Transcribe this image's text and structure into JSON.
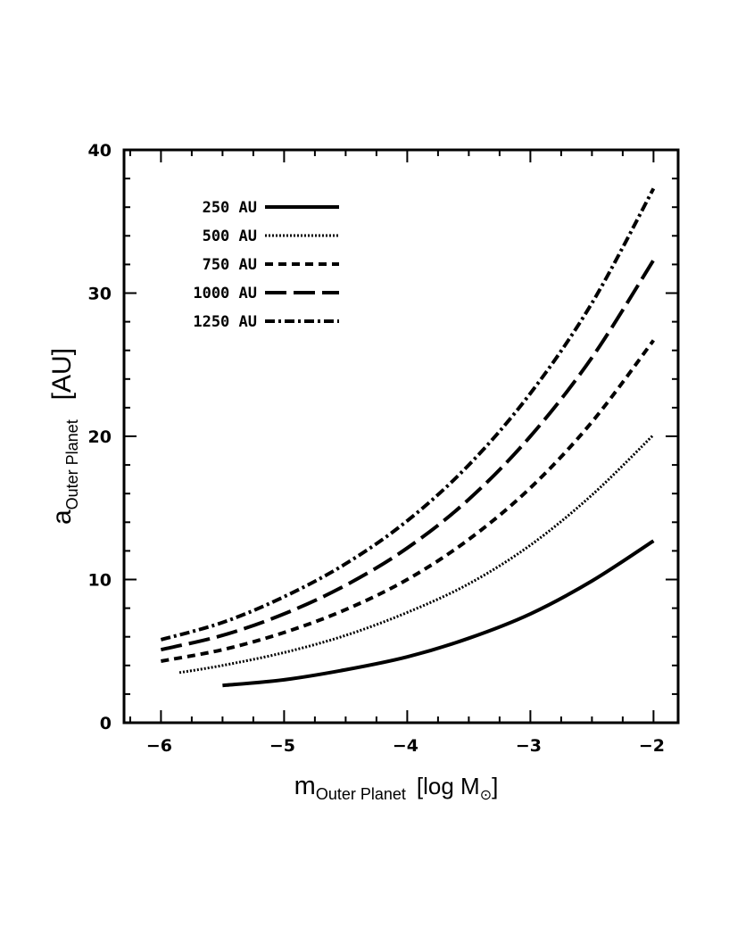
{
  "chart_data": {
    "type": "line",
    "title": "",
    "xlabel": {
      "main": "m",
      "sub": "Outer Planet",
      "unit_prefix": "[log M",
      "unit_sub": "⊙",
      "unit_suffix": "]"
    },
    "ylabel": {
      "main": "a",
      "sub": "Outer Planet",
      "unit": "[AU]"
    },
    "xlim": [
      -6.3,
      -1.8
    ],
    "ylim": [
      0,
      40
    ],
    "xticks": [
      -6,
      -5,
      -4,
      -3,
      -2
    ],
    "xtick_labels": [
      "−6",
      "−5",
      "−4",
      "−3",
      "−2"
    ],
    "yticks": [
      0,
      10,
      20,
      30,
      40
    ],
    "ytick_labels": [
      "0",
      "10",
      "20",
      "30",
      "40"
    ],
    "legend_position": "top-left",
    "series": [
      {
        "name": "250 AU",
        "style": "solid",
        "x": [
          -5.5,
          -5.0,
          -4.5,
          -4.0,
          -3.5,
          -3.0,
          -2.5,
          -2.0
        ],
        "y": [
          2.6,
          3.0,
          3.7,
          4.6,
          5.9,
          7.6,
          9.9,
          12.7
        ]
      },
      {
        "name": "500 AU",
        "style": "dotted",
        "x": [
          -5.85,
          -5.5,
          -5.0,
          -4.5,
          -4.0,
          -3.5,
          -3.0,
          -2.5,
          -2.0
        ],
        "y": [
          3.5,
          4.0,
          4.9,
          6.1,
          7.7,
          9.7,
          12.4,
          15.9,
          20.1
        ]
      },
      {
        "name": "750 AU",
        "style": "dashed",
        "x": [
          -6.0,
          -5.5,
          -5.0,
          -4.5,
          -4.0,
          -3.5,
          -3.0,
          -2.5,
          -2.0
        ],
        "y": [
          4.3,
          5.1,
          6.3,
          7.9,
          10.0,
          12.8,
          16.4,
          21.0,
          26.7
        ]
      },
      {
        "name": "1000 AU",
        "style": "long-dashed",
        "x": [
          -6.0,
          -5.5,
          -5.0,
          -4.5,
          -4.0,
          -3.5,
          -3.0,
          -2.5,
          -2.0
        ],
        "y": [
          5.1,
          6.1,
          7.6,
          9.6,
          12.2,
          15.6,
          20.0,
          25.5,
          32.3
        ]
      },
      {
        "name": "1250 AU",
        "style": "dash-dot",
        "x": [
          -6.0,
          -5.5,
          -5.0,
          -4.5,
          -4.0,
          -3.5,
          -3.0,
          -2.5,
          -2.0
        ],
        "y": [
          5.8,
          7.0,
          8.8,
          11.1,
          14.1,
          18.0,
          23.0,
          29.3,
          37.3
        ]
      }
    ]
  }
}
